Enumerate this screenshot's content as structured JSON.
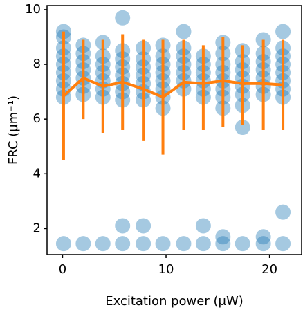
{
  "chart_data": {
    "type": "scatter",
    "xlabel": "Excitation power (μW)",
    "ylabel": "FRC (µm⁻¹)",
    "x": [
      0.1,
      0.1,
      0.1,
      0.1,
      0.1,
      0.1,
      0.1,
      0.1,
      0.1,
      0.1,
      2,
      2,
      2,
      2,
      2,
      2,
      2,
      2,
      3.9,
      3.9,
      3.9,
      3.9,
      3.9,
      3.9,
      3.9,
      3.9,
      5.8,
      5.8,
      5.8,
      5.8,
      5.8,
      5.8,
      5.8,
      5.8,
      5.8,
      5.8,
      7.8,
      7.8,
      7.8,
      7.8,
      7.8,
      7.8,
      7.8,
      7.8,
      7.8,
      9.7,
      9.7,
      9.7,
      9.7,
      9.7,
      9.7,
      9.7,
      9.7,
      9.7,
      11.7,
      11.7,
      11.7,
      11.7,
      11.7,
      11.7,
      11.7,
      11.7,
      13.6,
      13.6,
      13.6,
      13.6,
      13.6,
      13.6,
      13.6,
      13.6,
      15.5,
      15.5,
      15.5,
      15.5,
      15.5,
      15.5,
      15.5,
      15.5,
      15.5,
      15.5,
      17.4,
      17.4,
      17.4,
      17.4,
      17.4,
      17.4,
      17.4,
      17.4,
      17.4,
      19.4,
      19.4,
      19.4,
      19.4,
      19.4,
      19.4,
      19.4,
      19.4,
      19.4,
      21.3,
      21.3,
      21.3,
      21.3,
      21.3,
      21.3,
      21.3,
      21.3,
      21.3,
      21.3
    ],
    "values": [
      1.45,
      6.8,
      7.1,
      7.4,
      7.7,
      8.0,
      8.3,
      8.6,
      9.0,
      9.2,
      1.45,
      6.9,
      7.2,
      7.5,
      7.8,
      8.1,
      8.4,
      8.7,
      1.45,
      6.8,
      7.1,
      7.4,
      7.7,
      8.0,
      8.3,
      8.8,
      1.45,
      2.1,
      6.7,
      7.0,
      7.3,
      7.6,
      7.9,
      8.2,
      8.5,
      9.7,
      1.45,
      2.1,
      6.7,
      7.0,
      7.3,
      7.6,
      7.9,
      8.2,
      8.6,
      1.45,
      6.4,
      6.8,
      7.1,
      7.4,
      7.7,
      8.0,
      8.3,
      8.7,
      1.45,
      7.1,
      7.4,
      7.7,
      8.0,
      8.3,
      8.6,
      9.2,
      1.45,
      2.1,
      6.8,
      7.1,
      7.4,
      7.7,
      8.0,
      8.3,
      1.45,
      1.7,
      6.4,
      6.8,
      7.1,
      7.4,
      7.7,
      8.0,
      8.4,
      8.8,
      1.45,
      5.7,
      6.5,
      6.9,
      7.2,
      7.5,
      7.8,
      8.1,
      8.5,
      1.45,
      1.7,
      6.9,
      7.2,
      7.5,
      7.8,
      8.1,
      8.4,
      8.9,
      1.45,
      2.6,
      6.8,
      7.1,
      7.4,
      7.7,
      8.0,
      8.3,
      8.6,
      9.2
    ],
    "color": "#1f77b4",
    "line": {
      "x": [
        0.1,
        2,
        3.9,
        5.8,
        7.8,
        9.7,
        11.7,
        13.6,
        15.5,
        17.4,
        19.4,
        21.3
      ],
      "values": [
        6.85,
        7.5,
        7.2,
        7.35,
        7.1,
        6.8,
        7.35,
        7.3,
        7.4,
        7.3,
        7.3,
        7.25
      ],
      "err_low": [
        4.5,
        6.0,
        5.5,
        5.6,
        5.2,
        4.7,
        5.6,
        5.6,
        5.7,
        5.8,
        5.6,
        5.6
      ],
      "err_high": [
        9.2,
        8.9,
        8.9,
        9.1,
        8.9,
        8.9,
        8.9,
        8.7,
        9.0,
        8.7,
        8.9,
        8.9
      ],
      "color": "#ff7f0e"
    },
    "xlim": [
      -1.5,
      23.1
    ],
    "xticks": [
      0,
      10,
      20
    ],
    "ylim": [
      1.05,
      10.15
    ],
    "yticks": [
      2,
      4,
      6,
      8,
      10
    ]
  }
}
